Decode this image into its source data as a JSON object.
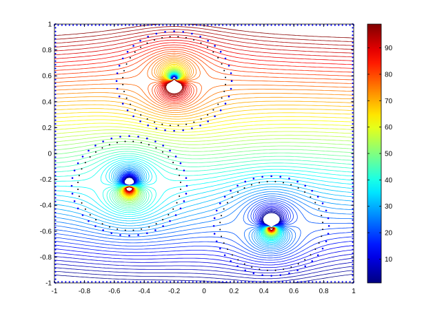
{
  "chart_data": {
    "type": "contour",
    "title": "",
    "xlabel": "",
    "ylabel": "",
    "xlim": [
      -1,
      1
    ],
    "ylim": [
      -1,
      1
    ],
    "x_ticks": [
      -1,
      -0.8,
      -0.6,
      -0.4,
      -0.2,
      0,
      0.2,
      0.4,
      0.6,
      0.8,
      1
    ],
    "x_tick_labels": [
      "-1",
      "-0.8",
      "-0.6",
      "-0.4",
      "-0.2",
      "0",
      "0.2",
      "0.4",
      "0.6",
      "0.8",
      "1"
    ],
    "y_ticks": [
      -1,
      -0.8,
      -0.6,
      -0.4,
      -0.2,
      0,
      0.2,
      0.4,
      0.6,
      0.8,
      1
    ],
    "y_tick_labels": [
      "-1",
      "-0.8",
      "-0.6",
      "-0.4",
      "-0.2",
      "0",
      "0.2",
      "0.4",
      "0.6",
      "0.8",
      "1"
    ],
    "grid": false,
    "colormap": "jet",
    "contour_levels": {
      "min": 1,
      "max": 99,
      "count": 60
    },
    "colorbar": {
      "range": [
        1,
        99
      ],
      "ticks": [
        10,
        20,
        30,
        40,
        50,
        60,
        70,
        80,
        90
      ],
      "tick_labels": [
        "10",
        "20",
        "30",
        "40",
        "50",
        "60",
        "70",
        "80",
        "90"
      ]
    },
    "obstacles": [
      {
        "name": "circle-top",
        "center": [
          -0.2,
          0.56
        ],
        "radius": 0.37
      },
      {
        "name": "circle-left",
        "center": [
          -0.5,
          -0.25
        ],
        "radius": 0.37
      },
      {
        "name": "circle-bottom-right",
        "center": [
          0.45,
          -0.56
        ],
        "radius": 0.37
      }
    ],
    "boundary_point_colors": {
      "outer": "#0000ff",
      "inner": "#000000"
    }
  },
  "colors": {
    "axes": "#000000",
    "background": "#ffffff"
  }
}
